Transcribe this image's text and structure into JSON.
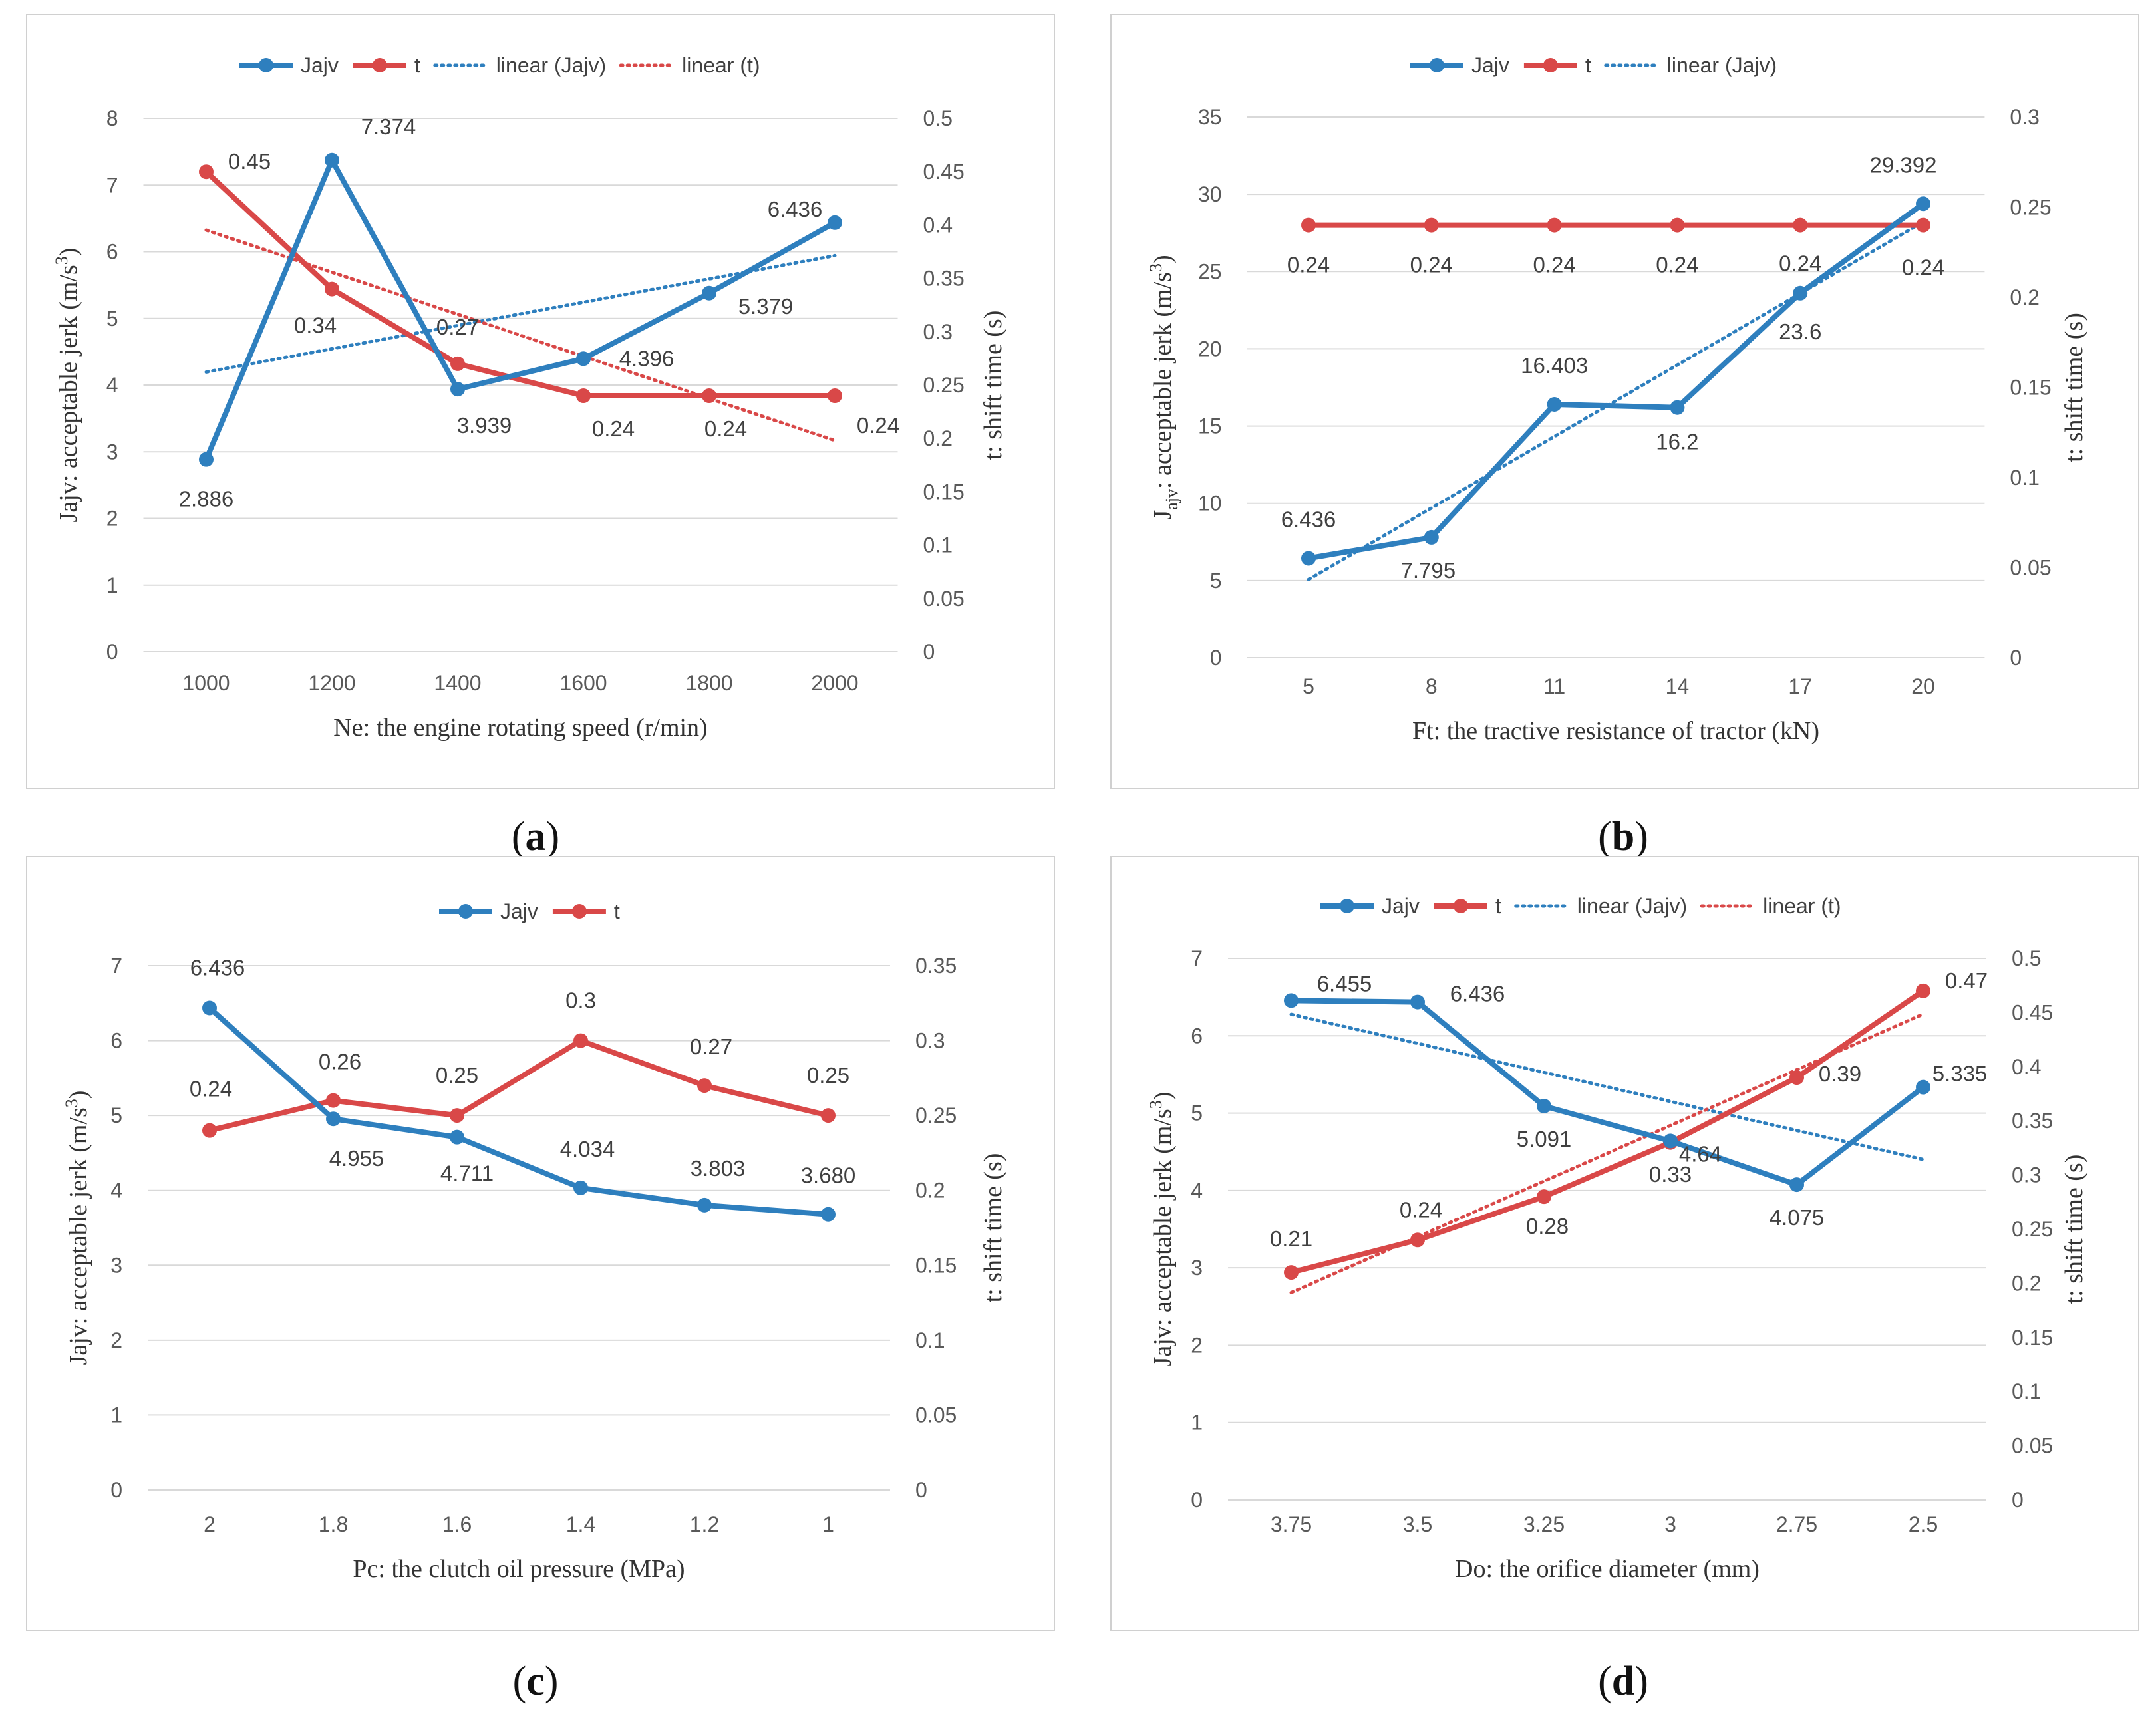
{
  "colors": {
    "jajv": "#2E7FBE",
    "t": "#D94848",
    "grid": "#D9D9D9",
    "tick_text": "#595959",
    "frame": "#D0D0D0"
  },
  "chart_data": [
    {
      "id": "a",
      "type": "line",
      "panel_label": "a",
      "legend": [
        "Jajv",
        "t",
        "linear (Jajv)",
        "linear (t)"
      ],
      "categories": [
        "1000",
        "1200",
        "1400",
        "1600",
        "1800",
        "2000"
      ],
      "xlabel": "Ne: the engine rotating speed (r/min)",
      "ylabel_left": [
        "Jajv: acceptable jerk (m/s",
        "3",
        ")"
      ],
      "ylabel_right": "t: shift time (s)",
      "left_axis": {
        "min": 0,
        "max": 8,
        "step": 1,
        "ticks": [
          "0",
          "1",
          "2",
          "3",
          "4",
          "5",
          "6",
          "7",
          "8"
        ]
      },
      "right_axis": {
        "min": 0,
        "max": 0.5,
        "step": 0.05,
        "ticks": [
          "0",
          "0.05",
          "0.1",
          "0.15",
          "0.2",
          "0.25",
          "0.3",
          "0.35",
          "0.4",
          "0.45",
          "0.5"
        ]
      },
      "series": [
        {
          "name": "Jajv",
          "axis": "left",
          "values": [
            2.886,
            7.374,
            3.939,
            4.396,
            5.379,
            6.436
          ],
          "labels": [
            "2.886",
            "7.374",
            "3.939",
            "4.396",
            "5.379",
            "6.436"
          ]
        },
        {
          "name": "t",
          "axis": "right",
          "values": [
            0.45,
            0.34,
            0.27,
            0.24,
            0.24,
            0.24
          ],
          "labels": [
            "0.45",
            "0.34",
            "0.27",
            "0.24",
            "0.24",
            "0.24"
          ]
        }
      ],
      "trendlines": [
        {
          "series": "Jajv",
          "axis": "left"
        },
        {
          "series": "t",
          "axis": "right"
        }
      ]
    },
    {
      "id": "b",
      "type": "line",
      "panel_label": "b",
      "legend": [
        "Jajv",
        "t",
        "linear (Jajv)"
      ],
      "categories": [
        "5",
        "8",
        "11",
        "14",
        "17",
        "20"
      ],
      "xlabel": "Ft: the tractive resistance of tractor (kN)",
      "ylabel_left": [
        "J",
        "ajv",
        ": acceptable jerk (m/s",
        "3",
        ")"
      ],
      "ylabel_right": "t: shift time (s)",
      "left_axis": {
        "min": 0,
        "max": 35,
        "step": 5,
        "ticks": [
          "0",
          "5",
          "10",
          "15",
          "20",
          "25",
          "30",
          "35"
        ]
      },
      "right_axis": {
        "min": 0,
        "max": 0.3,
        "step": 0.05,
        "ticks": [
          "0",
          "0.05",
          "0.1",
          "0.15",
          "0.2",
          "0.25",
          "0.3"
        ]
      },
      "series": [
        {
          "name": "Jajv",
          "axis": "left",
          "values": [
            6.436,
            7.795,
            16.403,
            16.2,
            23.6,
            29.392
          ],
          "labels": [
            "6.436",
            "7.795",
            "16.403",
            "16.2",
            "23.6",
            "29.392"
          ]
        },
        {
          "name": "t",
          "axis": "right",
          "values": [
            0.24,
            0.24,
            0.24,
            0.24,
            0.24,
            0.24
          ],
          "labels": [
            "0.24",
            "0.24",
            "0.24",
            "0.24",
            "0.24",
            "0.24"
          ]
        }
      ],
      "trendlines": [
        {
          "series": "Jajv",
          "axis": "left"
        }
      ]
    },
    {
      "id": "c",
      "type": "line",
      "panel_label": "c",
      "legend": [
        "Jajv",
        "t"
      ],
      "categories": [
        "2",
        "1.8",
        "1.6",
        "1.4",
        "1.2",
        "1"
      ],
      "xlabel": "Pc: the clutch oil pressure (MPa)",
      "ylabel_left": [
        "Jajv: acceptable jerk (m/s",
        "3",
        ")"
      ],
      "ylabel_right": "t: shift time (s)",
      "left_axis": {
        "min": 0,
        "max": 7,
        "step": 1,
        "ticks": [
          "0",
          "1",
          "2",
          "3",
          "4",
          "5",
          "6",
          "7"
        ]
      },
      "right_axis": {
        "min": 0,
        "max": 0.35,
        "step": 0.05,
        "ticks": [
          "0",
          "0.05",
          "0.1",
          "0.15",
          "0.2",
          "0.25",
          "0.3",
          "0.35"
        ]
      },
      "series": [
        {
          "name": "Jajv",
          "axis": "left",
          "values": [
            6.436,
            4.955,
            4.711,
            4.034,
            3.803,
            3.68
          ],
          "labels": [
            "6.436",
            "4.955",
            "4.711",
            "4.034",
            "3.803",
            "3.680"
          ]
        },
        {
          "name": "t",
          "axis": "right",
          "values": [
            0.24,
            0.26,
            0.25,
            0.3,
            0.27,
            0.25
          ],
          "labels": [
            "0.24",
            "0.26",
            "0.25",
            "0.3",
            "0.27",
            "0.25"
          ]
        }
      ],
      "trendlines": []
    },
    {
      "id": "d",
      "type": "line",
      "panel_label": "d",
      "legend": [
        "Jajv",
        "t",
        "linear (Jajv)",
        "linear (t)"
      ],
      "categories": [
        "3.75",
        "3.5",
        "3.25",
        "3",
        "2.75",
        "2.5"
      ],
      "xlabel": "Do: the orifice diameter (mm)",
      "ylabel_left": [
        "Jajv: acceptable jerk (m/s",
        "3",
        ")"
      ],
      "ylabel_right": "t: shift time (s)",
      "left_axis": {
        "min": 0,
        "max": 7,
        "step": 1,
        "ticks": [
          "0",
          "1",
          "2",
          "3",
          "4",
          "5",
          "6",
          "7"
        ]
      },
      "right_axis": {
        "min": 0,
        "max": 0.5,
        "step": 0.05,
        "ticks": [
          "0",
          "0.05",
          "0.1",
          "0.15",
          "0.2",
          "0.25",
          "0.3",
          "0.35",
          "0.4",
          "0.45",
          "0.5"
        ]
      },
      "series": [
        {
          "name": "Jajv",
          "axis": "left",
          "values": [
            6.455,
            6.436,
            5.091,
            4.64,
            4.075,
            5.335
          ],
          "labels": [
            "6.455",
            "6.436",
            "5.091",
            "4.64",
            "4.075",
            "5.335"
          ]
        },
        {
          "name": "t",
          "axis": "right",
          "values": [
            0.21,
            0.24,
            0.28,
            0.33,
            0.39,
            0.47
          ],
          "labels": [
            "0.21",
            "0.24",
            "0.28",
            "0.33",
            "0.39",
            "0.47"
          ]
        }
      ],
      "trendlines": [
        {
          "series": "Jajv",
          "axis": "left"
        },
        {
          "series": "t",
          "axis": "right"
        }
      ]
    }
  ]
}
